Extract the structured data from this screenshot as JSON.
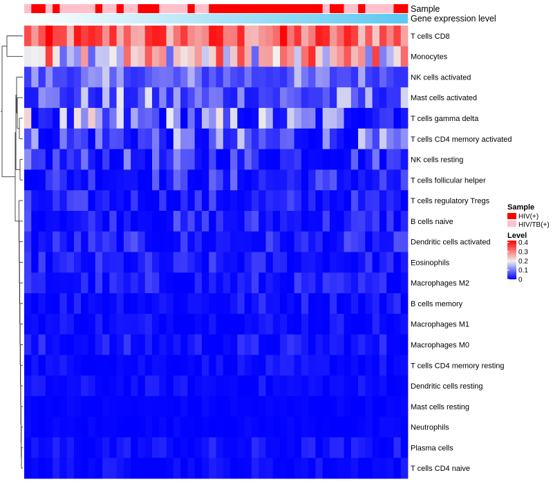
{
  "chart_data": {
    "type": "heatmap",
    "title": "",
    "rows": [
      "T cells CD8",
      "Monocytes",
      "NK cells activated",
      "Mast cells activated",
      "T cells gamma delta",
      "T cells CD4 memory activated",
      "NK cells resting",
      "T cells follicular helper",
      "T cells regulatory  Tregs",
      "B cells naive",
      "Dendritic cells activated",
      "Eosinophils",
      "Macrophages M2",
      "B cells memory",
      "Macrophages M1",
      "Macrophages M0",
      "T cells CD4 memory resting",
      "Dendritic cells resting",
      "Mast cells resting",
      "Neutrophils",
      "Plasma cells",
      "T cells CD4 naive"
    ],
    "n_columns": 54,
    "row_level_ranges": [
      [
        0.22,
        0.42
      ],
      [
        0.08,
        0.38
      ],
      [
        0.04,
        0.17
      ],
      [
        0.02,
        0.2
      ],
      [
        0.0,
        0.24
      ],
      [
        0.0,
        0.18
      ],
      [
        0.0,
        0.12
      ],
      [
        0.0,
        0.1
      ],
      [
        0.0,
        0.07
      ],
      [
        0.0,
        0.08
      ],
      [
        0.0,
        0.07
      ],
      [
        0.0,
        0.06
      ],
      [
        0.0,
        0.06
      ],
      [
        0.0,
        0.05
      ],
      [
        0.0,
        0.04
      ],
      [
        0.0,
        0.05
      ],
      [
        0.0,
        0.03
      ],
      [
        0.0,
        0.03
      ],
      [
        0.0,
        0.01
      ],
      [
        0.0,
        0.01
      ],
      [
        0.0,
        0.04
      ],
      [
        0.0,
        0.03
      ]
    ],
    "sample_groups": [
      "HIV/TB(+)",
      "HIV(+)",
      "HIV(+)",
      "HIV/TB(+)",
      "HIV(+)",
      "HIV/TB(+)",
      "HIV/TB(+)",
      "HIV/TB(+)",
      "HIV/TB(+)",
      "HIV/TB(+)",
      "HIV(+)",
      "HIV/TB(+)",
      "HIV/TB(+)",
      "HIV(+)",
      "HIV/TB(+)",
      "HIV/TB(+)",
      "HIV(+)",
      "HIV(+)",
      "HIV(+)",
      "HIV/TB(+)",
      "HIV/TB(+)",
      "HIV/TB(+)",
      "HIV/TB(+)",
      "HIV(+)",
      "HIV/TB(+)",
      "HIV/TB(+)",
      "HIV(+)",
      "HIV(+)",
      "HIV(+)",
      "HIV(+)",
      "HIV(+)",
      "HIV(+)",
      "HIV(+)",
      "HIV(+)",
      "HIV(+)",
      "HIV(+)",
      "HIV(+)",
      "HIV(+)",
      "HIV(+)",
      "HIV(+)",
      "HIV(+)",
      "HIV(+)",
      "HIV/TB(+)",
      "HIV(+)",
      "HIV(+)",
      "HIV/TB(+)",
      "HIV/TB(+)",
      "HIV(+)",
      "HIV/TB(+)",
      "HIV/TB(+)",
      "HIV/TB(+)",
      "HIV/TB(+)",
      "HIV(+)",
      "HIV(+)"
    ],
    "annotation_tracks": [
      "Sample",
      "Gene expression level"
    ],
    "gene_expression_gradient": [
      "#ffffff",
      "#5bc8f0"
    ],
    "legend": {
      "sample_title": "Sample",
      "sample_entries": [
        {
          "label": "HIV(+)",
          "color": "#ff0000"
        },
        {
          "label": "HIV/TB(+)",
          "color": "#ffc0cb"
        }
      ],
      "level_title": "Level",
      "level_ticks": [
        "0.4",
        "0.3",
        "0.2",
        "0.1",
        "0"
      ],
      "level_tick_values": [
        0.4,
        0.3,
        0.2,
        0.1,
        0
      ]
    },
    "color_scale": {
      "min": 0,
      "mid": 0.2,
      "max": 0.42,
      "low_color": "#0000ff",
      "mid_color": "#f0f0f0",
      "high_color": "#ff0000"
    }
  }
}
